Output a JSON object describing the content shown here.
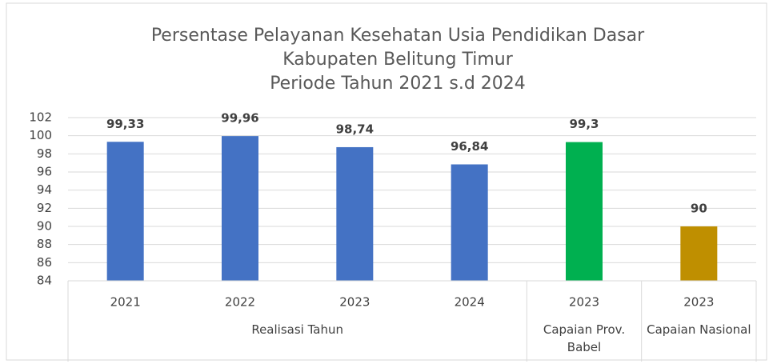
{
  "chart_data": {
    "type": "bar",
    "title": [
      "Persentase Pelayanan Kesehatan Usia Pendidikan Dasar",
      "Kabupaten Belitung Timur",
      "Periode Tahun 2021 s.d 2024"
    ],
    "groups": [
      {
        "name": "Realisasi Tahun",
        "color": "#4472c4",
        "categories": [
          "2021",
          "2022",
          "2023",
          "2024"
        ],
        "values": [
          99.33,
          99.96,
          98.74,
          96.84
        ],
        "value_labels": [
          "99,33",
          "99,96",
          "98,74",
          "96,84"
        ]
      },
      {
        "name": "Capaian Prov. Babel",
        "color": "#00b050",
        "categories": [
          "2023"
        ],
        "values": [
          99.3
        ],
        "value_labels": [
          "99,3"
        ]
      },
      {
        "name": "Capaian Nasional",
        "color": "#bf8f00",
        "categories": [
          "2023"
        ],
        "values": [
          90
        ],
        "value_labels": [
          "90"
        ]
      }
    ],
    "ylim": [
      84,
      102
    ],
    "yticks": [
      84,
      86,
      88,
      90,
      92,
      94,
      96,
      98,
      100,
      102
    ],
    "grid": true
  }
}
